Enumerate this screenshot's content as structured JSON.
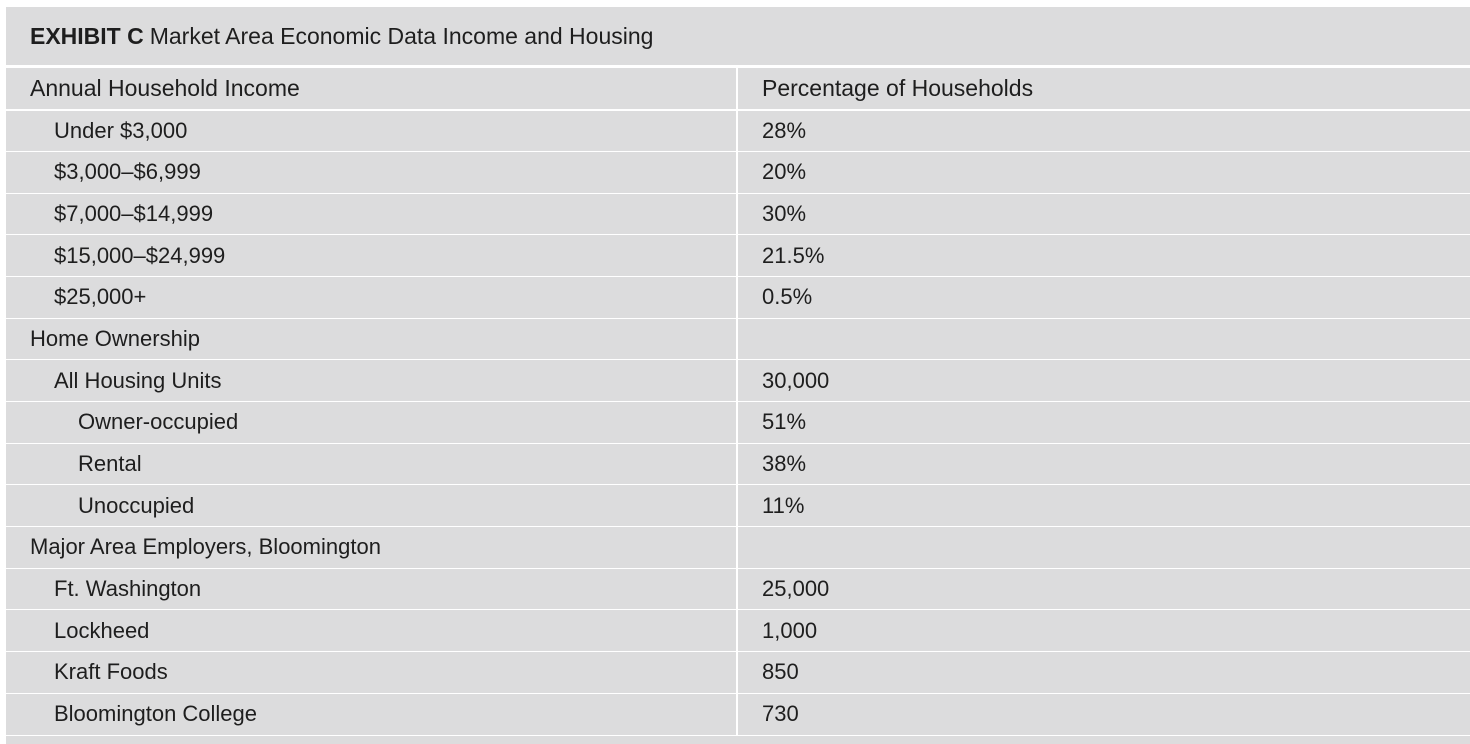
{
  "exhibit": {
    "label": "EXHIBIT C",
    "title": "Market Area Economic Data Income and Housing"
  },
  "table": {
    "headers": [
      "Annual Household Income",
      "Percentage of Households"
    ],
    "rows": [
      {
        "label": "Under $3,000",
        "value": "28%",
        "indent": 1
      },
      {
        "label": "$3,000–$6,999",
        "value": "20%",
        "indent": 1
      },
      {
        "label": "$7,000–$14,999",
        "value": "30%",
        "indent": 1
      },
      {
        "label": "$15,000–$24,999",
        "value": "21.5%",
        "indent": 1
      },
      {
        "label": "$25,000+",
        "value": "0.5%",
        "indent": 1
      },
      {
        "label": "Home Ownership",
        "value": "",
        "indent": 0
      },
      {
        "label": "All Housing Units",
        "value": "30,000",
        "indent": 1
      },
      {
        "label": "Owner-occupied",
        "value": "51%",
        "indent": 2
      },
      {
        "label": "Rental",
        "value": "38%",
        "indent": 2
      },
      {
        "label": "Unoccupied",
        "value": "11%",
        "indent": 2
      },
      {
        "label": "Major Area Employers, Bloomington",
        "value": "",
        "indent": 0
      },
      {
        "label": "Ft. Washington",
        "value": "25,000",
        "indent": 1
      },
      {
        "label": "Lockheed",
        "value": "1,000",
        "indent": 1
      },
      {
        "label": "Kraft Foods",
        "value": "850",
        "indent": 1
      },
      {
        "label": "Bloomington College",
        "value": "730",
        "indent": 1
      }
    ]
  }
}
